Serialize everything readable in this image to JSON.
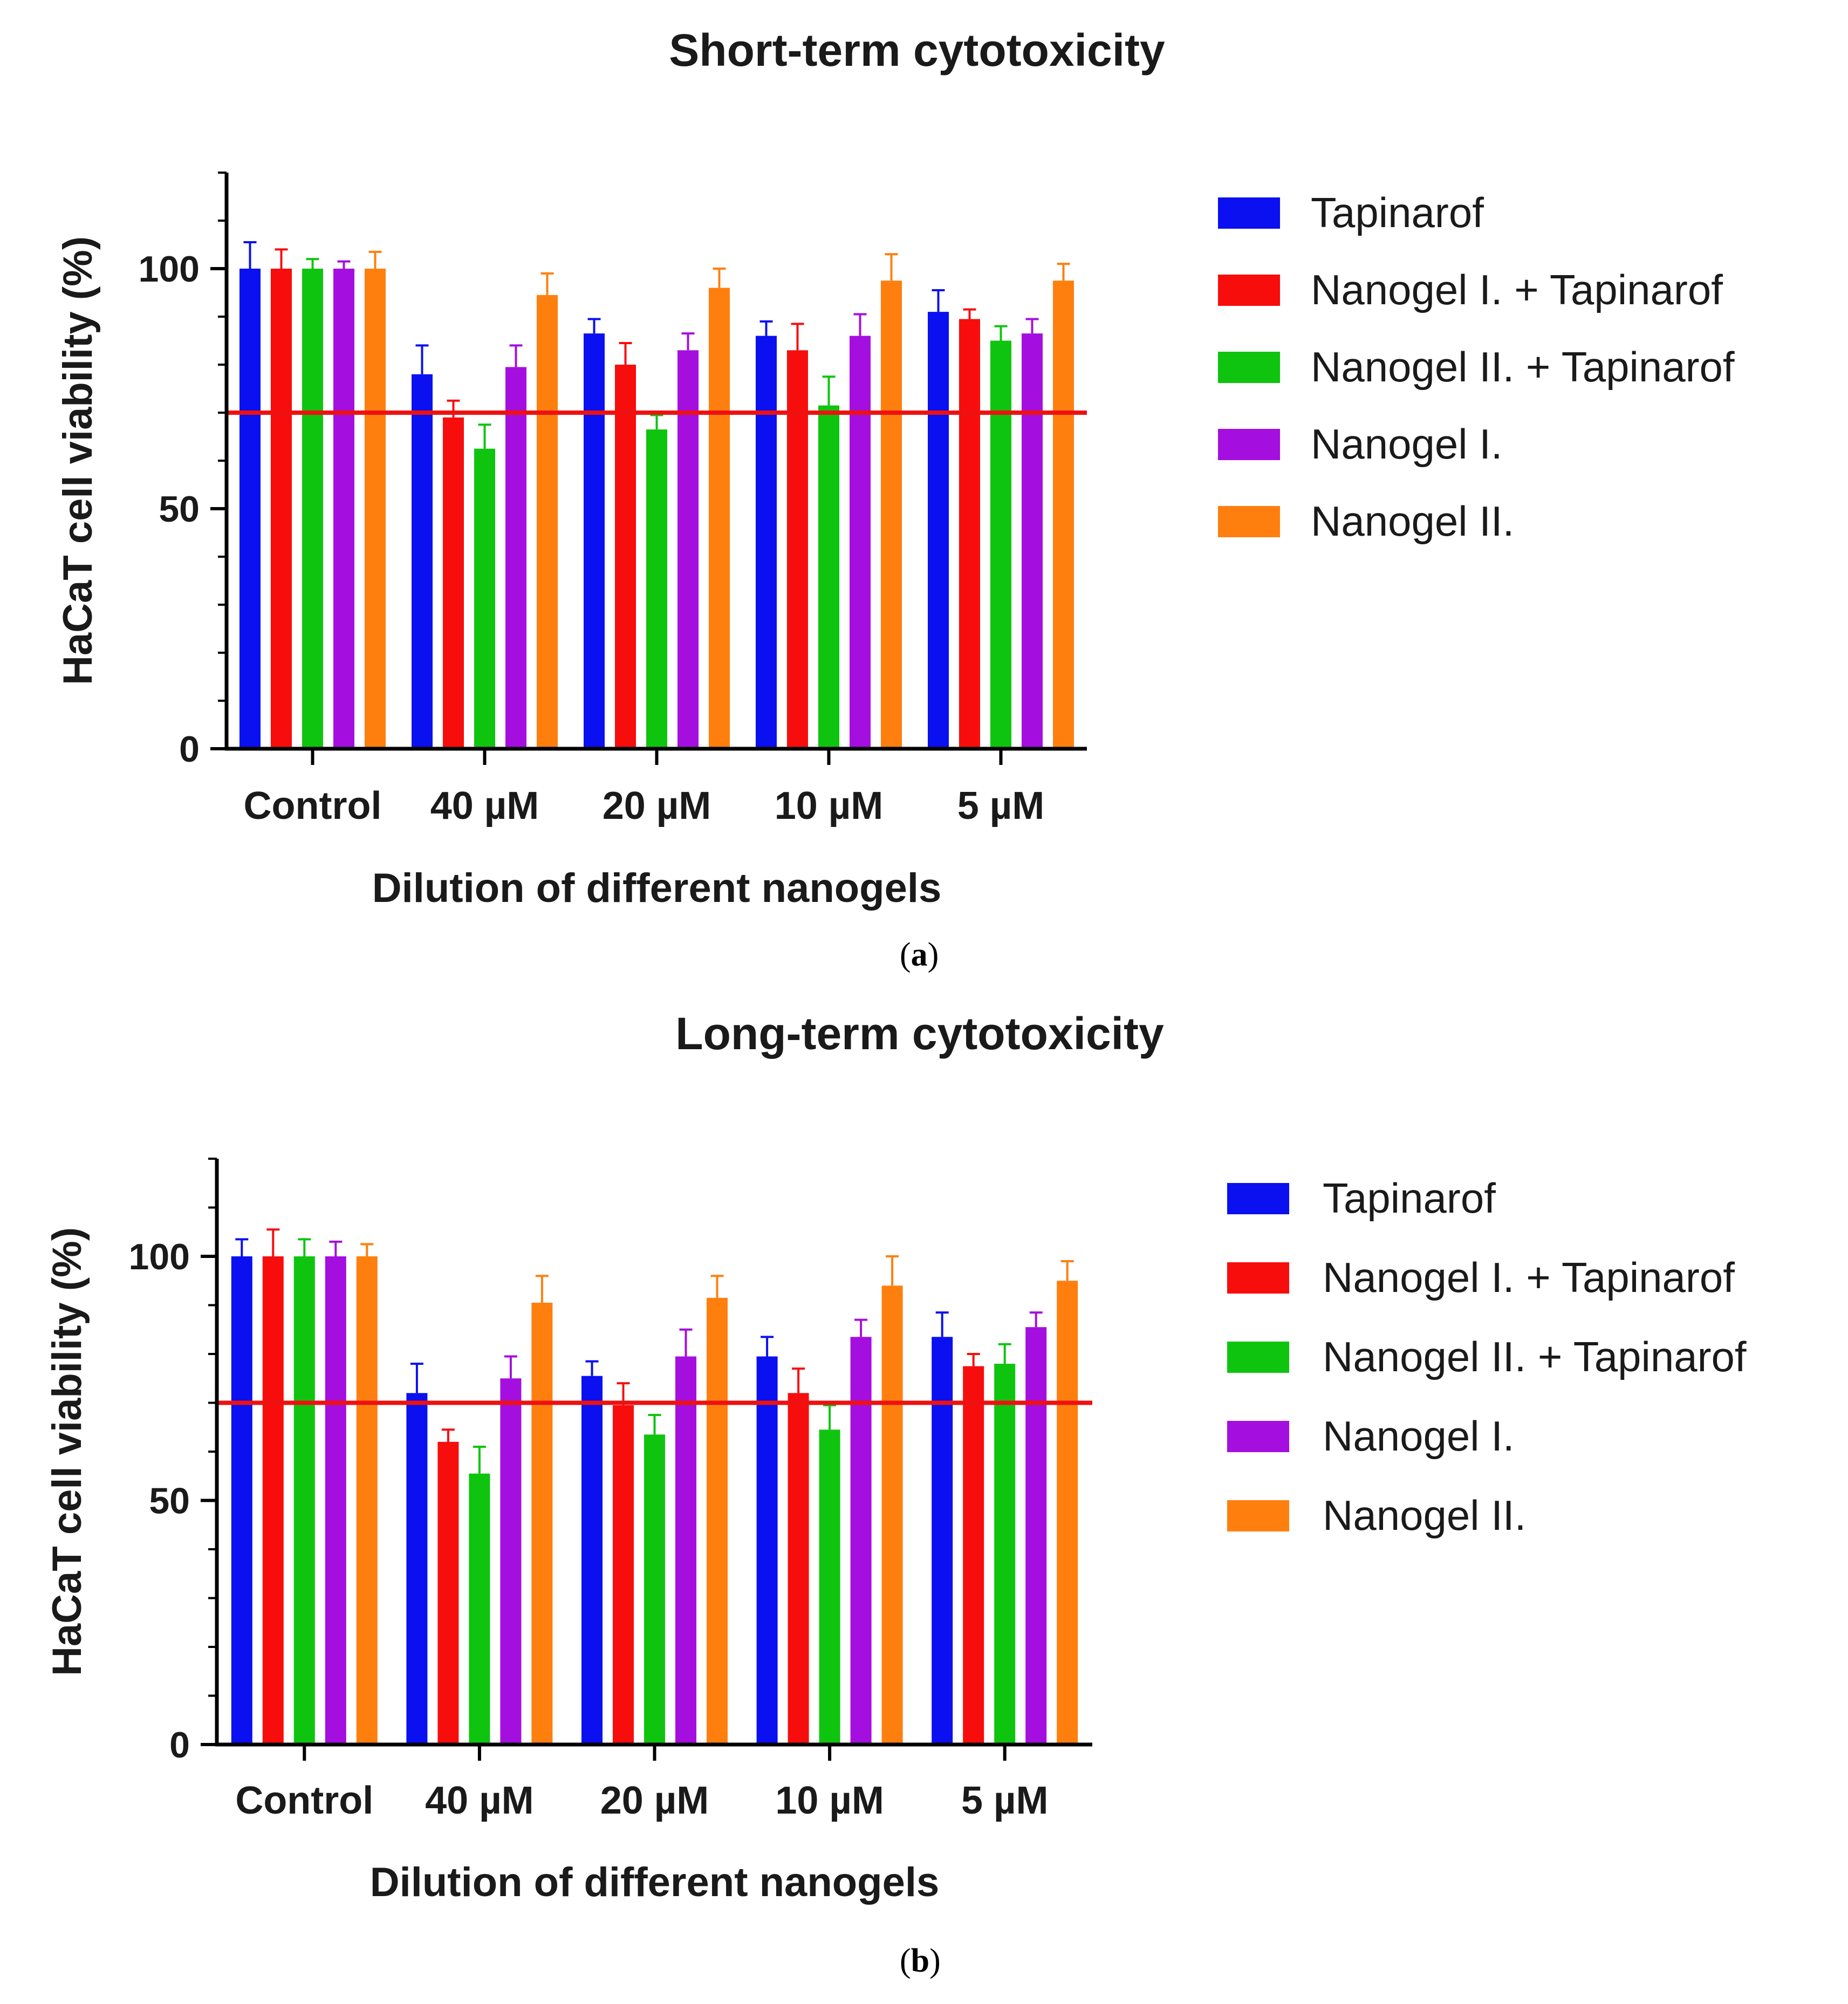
{
  "reference_line": 70,
  "reference_color": "#ee1111",
  "chart_data": [
    {
      "type": "bar",
      "panel": "a",
      "title": "Short-term cytotoxicity",
      "xlabel": "Dilution of different nanogels",
      "ylabel": "HaCaT cell viability (%)",
      "ylim": [
        0,
        120
      ],
      "yticks": [
        0,
        50,
        100
      ],
      "categories": [
        "Control",
        "40 µM",
        "20 µM",
        "10 µM",
        "5 µM"
      ],
      "reference_line": 70,
      "legend_position": "right",
      "series": [
        {
          "name": "Tapinarof",
          "color": "#0a10f0",
          "values": [
            100,
            78,
            86.5,
            86,
            91
          ],
          "errors": [
            5.5,
            6,
            3,
            3,
            4.5
          ]
        },
        {
          "name": "Nanogel I. + Tapinarof",
          "color": "#f80d0d",
          "values": [
            100,
            69,
            80,
            83,
            89.5
          ],
          "errors": [
            4,
            3.5,
            4.5,
            5.5,
            2
          ]
        },
        {
          "name": "Nanogel II. + Tapinarof",
          "color": "#0fc40f",
          "values": [
            100,
            62.5,
            66.5,
            71.5,
            85
          ],
          "errors": [
            2,
            5,
            3,
            6,
            3
          ]
        },
        {
          "name": "Nanogel I.",
          "color": "#a40fe0",
          "values": [
            100,
            79.5,
            83,
            86,
            86.5
          ],
          "errors": [
            1.5,
            4.5,
            3.5,
            4.5,
            3
          ]
        },
        {
          "name": "Nanogel II.",
          "color": "#ff7f0e",
          "values": [
            100,
            94.5,
            96,
            97.5,
            97.5
          ],
          "errors": [
            3.5,
            4.5,
            4,
            5.5,
            3.5
          ]
        }
      ]
    },
    {
      "type": "bar",
      "panel": "b",
      "title": "Long-term cytotoxicity",
      "xlabel": "Dilution of different nanogels",
      "ylabel": "HaCaT cell viability (%)",
      "ylim": [
        0,
        120
      ],
      "yticks": [
        0,
        50,
        100
      ],
      "categories": [
        "Control",
        "40 µM",
        "20 µM",
        "10 µM",
        "5 µM"
      ],
      "reference_line": 70,
      "legend_position": "right",
      "series": [
        {
          "name": "Tapinarof",
          "color": "#0a10f0",
          "values": [
            100,
            72,
            75.5,
            79.5,
            83.5
          ],
          "errors": [
            3.5,
            6,
            3,
            4,
            5
          ]
        },
        {
          "name": "Nanogel I. + Tapinarof",
          "color": "#f80d0d",
          "values": [
            100,
            62,
            69.5,
            72,
            77.5
          ],
          "errors": [
            5.5,
            2.5,
            4.5,
            5,
            2.5
          ]
        },
        {
          "name": "Nanogel II. + Tapinarof",
          "color": "#0fc40f",
          "values": [
            100,
            55.5,
            63.5,
            64.5,
            78
          ],
          "errors": [
            3.5,
            5.5,
            4,
            5,
            4
          ]
        },
        {
          "name": "Nanogel I.",
          "color": "#a40fe0",
          "values": [
            100,
            75,
            79.5,
            83.5,
            85.5
          ],
          "errors": [
            3,
            4.5,
            5.5,
            3.5,
            3
          ]
        },
        {
          "name": "Nanogel II.",
          "color": "#ff7f0e",
          "values": [
            100,
            90.5,
            91.5,
            94,
            95
          ],
          "errors": [
            2.5,
            5.5,
            4.5,
            6,
            4
          ]
        }
      ]
    }
  ],
  "labels": {
    "panel_a": "a",
    "panel_b": "b"
  }
}
